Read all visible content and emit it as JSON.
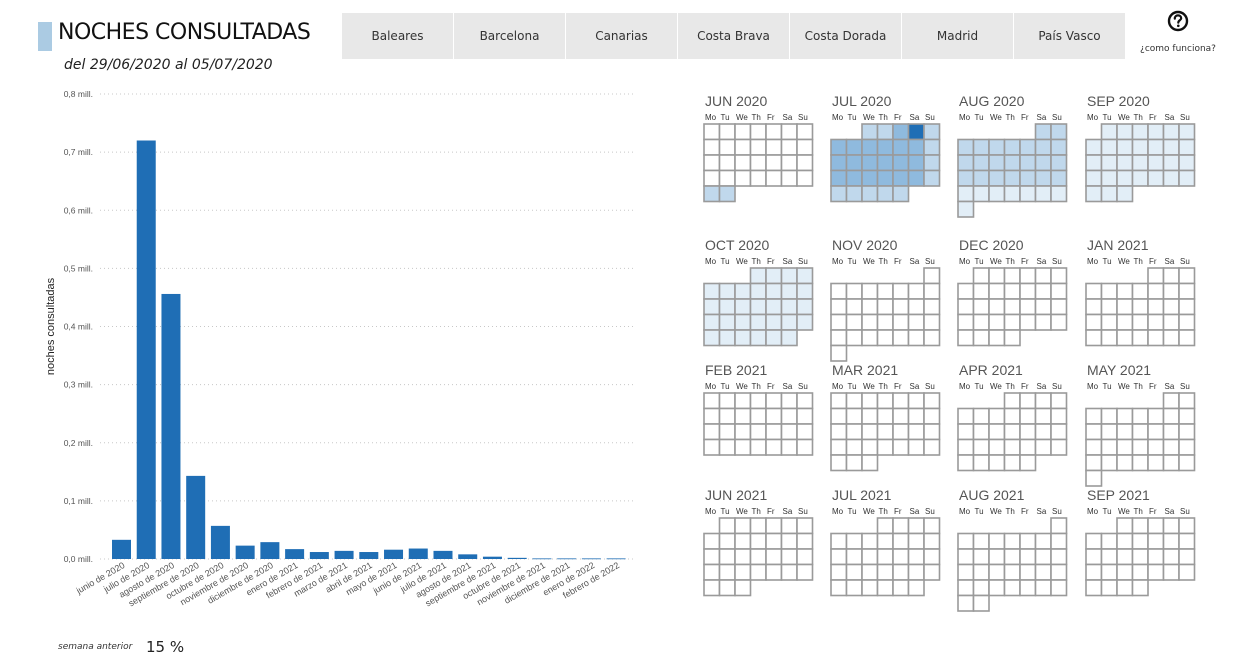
{
  "header": {
    "title": "NOCHES CONSULTADAS",
    "date_range": "del 29/06/2020 al 05/07/2020"
  },
  "tabs": [
    "Baleares",
    "Barcelona",
    "Canarias",
    "Costa Brava",
    "Costa Dorada",
    "Madrid",
    "País Vasco"
  ],
  "help": {
    "label": "¿como funciona?",
    "icon": "question-circle-icon"
  },
  "footer": {
    "label": "semana anterior",
    "value": "15 %"
  },
  "colors": {
    "bar": "#1f6eb5",
    "title_accent": "#abcbe3",
    "tab_bg": "#e8e8e8",
    "cal_border": "#9a9a9a",
    "cal_light": "#e2eef7",
    "cal_mid": "#c0d8ec",
    "cal_med": "#8fbade",
    "cal_dark": "#1f6eb5"
  },
  "chart_data": {
    "type": "bar",
    "ylabel": "noches consultadas",
    "xlabel": "",
    "ylim": [
      0,
      0.8
    ],
    "yticks": [
      {
        "value": 0.0,
        "label": "0,0 mill."
      },
      {
        "value": 0.1,
        "label": "0,1 mill."
      },
      {
        "value": 0.2,
        "label": "0,2 mill."
      },
      {
        "value": 0.3,
        "label": "0,3 mill."
      },
      {
        "value": 0.4,
        "label": "0,4 mill."
      },
      {
        "value": 0.5,
        "label": "0,5 mill."
      },
      {
        "value": 0.6,
        "label": "0,6 mill."
      },
      {
        "value": 0.7,
        "label": "0,7 mill."
      },
      {
        "value": 0.8,
        "label": "0,8 mill."
      }
    ],
    "grid": true,
    "categories": [
      "junio de 2020",
      "julio de 2020",
      "agosto de 2020",
      "septiembre de 2020",
      "octubre de 2020",
      "noviembre de 2020",
      "diciembre de 2020",
      "enero de 2021",
      "febrero de 2021",
      "marzo de 2021",
      "abril de 2021",
      "mayo de 2021",
      "junio de 2021",
      "julio de 2021",
      "agosto de 2021",
      "septiembre de 2021",
      "octubre de 2021",
      "noviembre de 2021",
      "diciembre de 2021",
      "enero de 2022",
      "febrero de 2022"
    ],
    "values": [
      0.033,
      0.72,
      0.456,
      0.143,
      0.057,
      0.023,
      0.029,
      0.017,
      0.012,
      0.014,
      0.012,
      0.016,
      0.018,
      0.014,
      0.008,
      0.004,
      0.002,
      0.001,
      0.001,
      0.001,
      0.001
    ]
  },
  "calendar": {
    "day_headers": [
      "Mo",
      "Tu",
      "We",
      "Th",
      "Fr",
      "Sa",
      "Su"
    ],
    "months": [
      {
        "title": "JUN 2020",
        "start": 0,
        "days": 30,
        "levels": {
          "29": 2,
          "30": 2
        }
      },
      {
        "title": "JUL 2020",
        "start": 2,
        "days": 31,
        "levels": {
          "1": 2,
          "2": 2,
          "3": 3,
          "4": 4,
          "5": 2,
          "6": 3,
          "7": 3,
          "8": 3,
          "9": 3,
          "10": 3,
          "11": 3,
          "12": 2,
          "13": 3,
          "14": 3,
          "15": 3,
          "16": 3,
          "17": 3,
          "18": 3,
          "19": 2,
          "20": 3,
          "21": 3,
          "22": 3,
          "23": 3,
          "24": 3,
          "25": 3,
          "26": 2,
          "27": 2,
          "28": 2,
          "29": 2,
          "30": 2,
          "31": 2
        }
      },
      {
        "title": "AUG 2020",
        "start": 5,
        "days": 31,
        "levels": {
          "1": 2,
          "2": 2,
          "3": 2,
          "4": 2,
          "5": 2,
          "6": 2,
          "7": 2,
          "8": 2,
          "9": 2,
          "10": 2,
          "11": 2,
          "12": 2,
          "13": 2,
          "14": 2,
          "15": 2,
          "16": 2,
          "17": 2,
          "18": 2,
          "19": 2,
          "20": 2,
          "21": 2,
          "22": 2,
          "23": 2,
          "24": 1,
          "25": 1,
          "26": 1,
          "27": 1,
          "28": 1,
          "29": 1,
          "30": 1,
          "31": 1
        }
      },
      {
        "title": "SEP 2020",
        "start": 1,
        "days": 30,
        "levels": {
          "1": 1,
          "2": 1,
          "3": 1,
          "4": 1,
          "5": 1,
          "6": 1,
          "7": 1,
          "8": 1,
          "9": 1,
          "10": 1,
          "11": 1,
          "12": 1,
          "13": 1,
          "14": 1,
          "15": 1,
          "16": 1,
          "17": 1,
          "18": 1,
          "19": 1,
          "20": 1,
          "21": 1,
          "22": 1,
          "23": 1,
          "24": 1,
          "25": 1,
          "26": 1,
          "27": 1,
          "28": 1,
          "29": 1,
          "30": 1
        }
      },
      {
        "title": "OCT 2020",
        "start": 3,
        "days": 31,
        "levels": {
          "1": 1,
          "2": 1,
          "3": 1,
          "4": 1,
          "5": 1,
          "6": 1,
          "7": 1,
          "8": 1,
          "9": 1,
          "10": 1,
          "11": 1,
          "12": 1,
          "13": 1,
          "14": 1,
          "15": 1,
          "16": 1,
          "17": 1,
          "18": 1,
          "19": 1,
          "20": 1,
          "21": 1,
          "22": 1,
          "23": 1,
          "24": 1,
          "25": 1,
          "26": 1,
          "27": 1,
          "28": 1,
          "29": 1,
          "30": 1,
          "31": 1
        }
      },
      {
        "title": "NOV 2020",
        "start": 6,
        "days": 30,
        "levels": {}
      },
      {
        "title": "DEC 2020",
        "start": 1,
        "days": 31,
        "levels": {}
      },
      {
        "title": "JAN 2021",
        "start": 4,
        "days": 31,
        "levels": {}
      },
      {
        "title": "FEB 2021",
        "start": 0,
        "days": 28,
        "levels": {}
      },
      {
        "title": "MAR 2021",
        "start": 0,
        "days": 31,
        "levels": {}
      },
      {
        "title": "APR 2021",
        "start": 3,
        "days": 30,
        "levels": {}
      },
      {
        "title": "MAY 2021",
        "start": 5,
        "days": 31,
        "levels": {}
      },
      {
        "title": "JUN 2021",
        "start": 1,
        "days": 30,
        "levels": {}
      },
      {
        "title": "JUL 2021",
        "start": 3,
        "days": 31,
        "levels": {}
      },
      {
        "title": "AUG 2021",
        "start": 6,
        "days": 31,
        "levels": {}
      },
      {
        "title": "SEP 2021",
        "start": 2,
        "days": 30,
        "levels": {}
      }
    ]
  }
}
